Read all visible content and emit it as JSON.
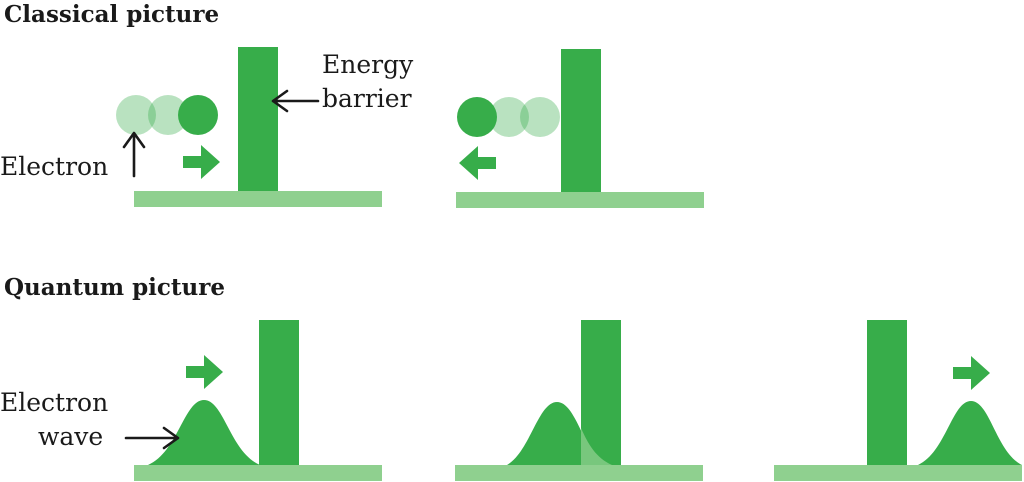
{
  "headings": {
    "classical": "Classical picture",
    "quantum": "Quantum picture"
  },
  "labels": {
    "energy": "Energy",
    "barrier": "barrier",
    "electron": "Electron",
    "electron_wave_line1": "Electron",
    "electron_wave_line2": "wave"
  },
  "colors": {
    "barrier": "#37ad4a",
    "ground": "#8fd08f",
    "electron": "#37ad4a",
    "electron_faded": "#8fd08f",
    "electron_light": "#bde3bd",
    "transmitted_wave": "#6dc36d",
    "text": "#1a1a1a"
  },
  "icons": [
    "arrow-right-icon",
    "arrow-left-icon",
    "pointer-arrow-icon"
  ]
}
